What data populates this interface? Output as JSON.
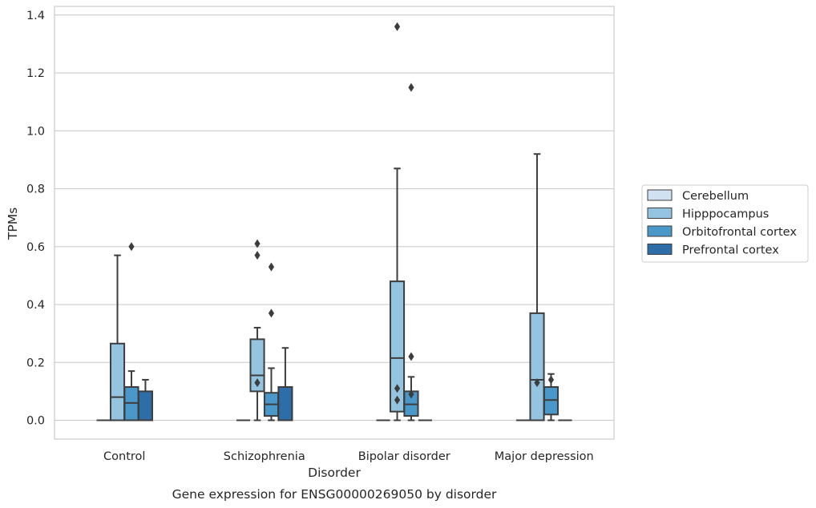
{
  "chart_data": {
    "type": "box",
    "caption": "Gene expression for ENSG00000269050 by disorder",
    "xlabel": "Disorder",
    "ylabel": "TPMs",
    "ylim": [
      -0.065,
      1.43
    ],
    "yticks": [
      0.0,
      0.2,
      0.4,
      0.6,
      0.8,
      1.0,
      1.2,
      1.4
    ],
    "ytick_labels": [
      "0.0",
      "0.2",
      "0.4",
      "0.6",
      "0.8",
      "1.0",
      "1.2",
      "1.4"
    ],
    "grid": true,
    "legend_position": "right",
    "categories": [
      "Control",
      "Schizophrenia",
      "Bipolar disorder",
      "Major depression"
    ],
    "series": [
      {
        "name": "Cerebellum",
        "color": "#d0e1f2",
        "boxes": [
          {
            "q1": 0.0,
            "median": 0.0,
            "q3": 0.0,
            "whisker_low": 0.0,
            "whisker_high": 0.0,
            "outliers": []
          },
          {
            "q1": 0.0,
            "median": 0.0,
            "q3": 0.0,
            "whisker_low": 0.0,
            "whisker_high": 0.0,
            "outliers": []
          },
          {
            "q1": 0.0,
            "median": 0.0,
            "q3": 0.0,
            "whisker_low": 0.0,
            "whisker_high": 0.0,
            "outliers": []
          },
          {
            "q1": 0.0,
            "median": 0.0,
            "q3": 0.0,
            "whisker_low": 0.0,
            "whisker_high": 0.0,
            "outliers": []
          }
        ]
      },
      {
        "name": "Hipppocampus",
        "color": "#94c4df",
        "boxes": [
          {
            "q1": 0.0,
            "median": 0.08,
            "q3": 0.265,
            "whisker_low": 0.0,
            "whisker_high": 0.57,
            "outliers": []
          },
          {
            "q1": 0.1,
            "median": 0.155,
            "q3": 0.28,
            "whisker_low": 0.0,
            "whisker_high": 0.32,
            "outliers": [
              0.13,
              0.61,
              0.57
            ]
          },
          {
            "q1": 0.03,
            "median": 0.215,
            "q3": 0.48,
            "whisker_low": 0.0,
            "whisker_high": 0.87,
            "outliers": [
              0.11,
              0.07,
              1.36
            ]
          },
          {
            "q1": 0.0,
            "median": 0.14,
            "q3": 0.37,
            "whisker_low": 0.0,
            "whisker_high": 0.92,
            "outliers": [
              0.13
            ]
          }
        ]
      },
      {
        "name": "Orbitofrontal cortex",
        "color": "#4a98c9",
        "boxes": [
          {
            "q1": 0.0,
            "median": 0.06,
            "q3": 0.115,
            "whisker_low": 0.0,
            "whisker_high": 0.17,
            "outliers": [
              0.6
            ]
          },
          {
            "q1": 0.015,
            "median": 0.055,
            "q3": 0.095,
            "whisker_low": 0.0,
            "whisker_high": 0.18,
            "outliers": [
              0.53,
              0.37
            ]
          },
          {
            "q1": 0.015,
            "median": 0.055,
            "q3": 0.1,
            "whisker_low": 0.0,
            "whisker_high": 0.15,
            "outliers": [
              1.15,
              0.22,
              0.09
            ]
          },
          {
            "q1": 0.02,
            "median": 0.07,
            "q3": 0.115,
            "whisker_low": 0.0,
            "whisker_high": 0.16,
            "outliers": [
              0.14
            ]
          }
        ]
      },
      {
        "name": "Prefrontal cortex",
        "color": "#2e6ea8",
        "boxes": [
          {
            "q1": 0.0,
            "median": 0.0,
            "q3": 0.1,
            "whisker_low": 0.0,
            "whisker_high": 0.14,
            "outliers": []
          },
          {
            "q1": 0.0,
            "median": 0.0,
            "q3": 0.115,
            "whisker_low": 0.0,
            "whisker_high": 0.25,
            "outliers": []
          },
          {
            "q1": 0.0,
            "median": 0.0,
            "q3": 0.0,
            "whisker_low": 0.0,
            "whisker_high": 0.0,
            "outliers": []
          },
          {
            "q1": 0.0,
            "median": 0.0,
            "q3": 0.0,
            "whisker_low": 0.0,
            "whisker_high": 0.0,
            "outliers": []
          }
        ]
      }
    ]
  }
}
